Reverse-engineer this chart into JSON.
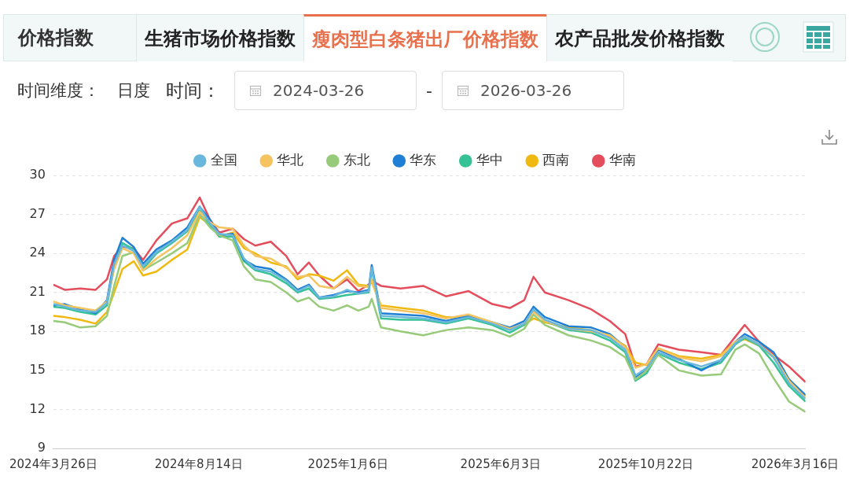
{
  "chart_data": {
    "type": "line",
    "title": "价格指数",
    "annotations": [
      "生猪市场价格指数",
      "瘦肉型白条猪出厂价格指数",
      "农产品批发价格指数",
      "时间维度：",
      "日度",
      "时间：",
      "2024-03-26",
      "-",
      "2026-03-26"
    ],
    "x": [
      "2024-03-26",
      "2024-04-06",
      "2024-04-21",
      "2024-05-06",
      "2024-05-17",
      "2024-05-24",
      "2024-06-01",
      "2024-06-12",
      "2024-06-21",
      "2024-07-04",
      "2024-07-19",
      "2024-08-03",
      "2024-08-15",
      "2024-08-25",
      "2024-09-03",
      "2024-09-16",
      "2024-09-27",
      "2024-10-08",
      "2024-10-23",
      "2024-11-07",
      "2024-11-18",
      "2024-11-29",
      "2024-12-09",
      "2024-12-23",
      "2025-01-05",
      "2025-01-16",
      "2025-01-26",
      "2025-01-29",
      "2025-02-07",
      "2025-02-26",
      "2025-03-20",
      "2025-04-11",
      "2025-05-03",
      "2025-05-26",
      "2025-06-12",
      "2025-06-26",
      "2025-07-05",
      "2025-07-16",
      "2025-08-08",
      "2025-08-30",
      "2025-09-17",
      "2025-10-02",
      "2025-10-12",
      "2025-10-23",
      "2025-11-03",
      "2025-11-23",
      "2025-12-15",
      "2026-01-03",
      "2026-01-17",
      "2026-01-26",
      "2026-02-09",
      "2026-02-23",
      "2026-03-10",
      "2026-03-26"
    ],
    "series": [
      {
        "name": "全国",
        "color": "#6ab7dc",
        "values": [
          20.1,
          19.9,
          19.6,
          19.5,
          20.2,
          23.2,
          24.6,
          24.2,
          23.0,
          24.1,
          24.9,
          25.8,
          27.6,
          26.3,
          25.5,
          25.4,
          23.6,
          22.8,
          22.6,
          21.9,
          21.1,
          21.5,
          20.6,
          20.7,
          21.2,
          20.9,
          21.1,
          22.9,
          19.2,
          19.1,
          19.0,
          18.7,
          19.1,
          18.6,
          18.1,
          18.6,
          19.7,
          18.9,
          18.2,
          18.1,
          17.5,
          16.6,
          14.6,
          15.2,
          16.4,
          15.8,
          15.3,
          15.8,
          17.1,
          17.6,
          17.0,
          16.0,
          14.0,
          12.8
        ]
      },
      {
        "name": "华北",
        "color": "#f5c460",
        "values": [
          20.3,
          20.0,
          19.8,
          19.6,
          20.3,
          22.8,
          24.4,
          24.0,
          22.7,
          23.6,
          24.4,
          25.4,
          27.2,
          26.4,
          26.0,
          25.9,
          24.6,
          23.8,
          23.6,
          22.9,
          22.2,
          22.3,
          21.5,
          21.3,
          22.2,
          21.5,
          21.4,
          22.0,
          19.8,
          19.6,
          19.4,
          19.0,
          19.3,
          18.7,
          18.2,
          18.6,
          19.5,
          18.8,
          18.2,
          18.0,
          17.7,
          16.8,
          15.2,
          15.5,
          16.7,
          16.0,
          15.7,
          16.1,
          17.2,
          17.6,
          17.0,
          16.1,
          14.2,
          12.9
        ]
      },
      {
        "name": "东北",
        "color": "#97cb7a",
        "values": [
          18.8,
          18.7,
          18.3,
          18.4,
          19.2,
          21.5,
          23.8,
          24.1,
          22.7,
          23.3,
          24.0,
          24.8,
          27.0,
          26.0,
          25.4,
          25.0,
          23.0,
          22.0,
          21.8,
          21.0,
          20.3,
          20.6,
          19.9,
          19.6,
          20.0,
          19.6,
          19.9,
          20.5,
          18.3,
          18.0,
          17.7,
          18.1,
          18.3,
          18.1,
          17.6,
          18.2,
          19.3,
          18.5,
          17.7,
          17.3,
          16.8,
          16.0,
          14.3,
          15.0,
          16.2,
          15.0,
          14.6,
          14.7,
          16.6,
          17.0,
          16.3,
          14.4,
          12.6,
          11.8
        ]
      },
      {
        "name": "华东",
        "color": "#1f7fd4",
        "values": [
          20.0,
          20.1,
          19.7,
          19.4,
          20.4,
          23.5,
          25.2,
          24.5,
          23.2,
          24.3,
          25.0,
          26.0,
          27.6,
          26.6,
          25.4,
          25.5,
          23.5,
          23.0,
          22.8,
          22.0,
          21.2,
          21.6,
          20.6,
          20.8,
          21.1,
          21.0,
          21.2,
          23.1,
          19.4,
          19.3,
          19.2,
          18.8,
          19.2,
          18.7,
          18.3,
          18.8,
          19.9,
          19.1,
          18.4,
          18.3,
          17.8,
          16.8,
          14.5,
          15.0,
          16.6,
          15.9,
          15.0,
          15.8,
          17.2,
          17.8,
          17.2,
          16.4,
          14.3,
          13.1
        ]
      },
      {
        "name": "华中",
        "color": "#36c295",
        "values": [
          19.9,
          19.8,
          19.5,
          19.3,
          20.0,
          23.0,
          24.8,
          24.3,
          22.8,
          24.0,
          24.8,
          25.7,
          27.3,
          26.2,
          25.3,
          25.3,
          23.4,
          22.7,
          22.4,
          21.7,
          21.0,
          21.3,
          20.5,
          20.6,
          20.8,
          20.9,
          21.0,
          22.8,
          19.0,
          18.9,
          18.9,
          18.6,
          19.0,
          18.5,
          17.9,
          18.5,
          19.6,
          18.8,
          18.1,
          17.9,
          17.3,
          16.4,
          14.2,
          14.8,
          16.3,
          15.6,
          15.1,
          15.6,
          17.0,
          17.5,
          16.9,
          15.6,
          13.8,
          12.6
        ]
      },
      {
        "name": "西南",
        "color": "#f0b911",
        "values": [
          19.2,
          19.1,
          18.9,
          18.6,
          19.5,
          21.0,
          22.8,
          23.4,
          22.3,
          22.6,
          23.5,
          24.3,
          26.8,
          26.2,
          25.3,
          25.6,
          24.4,
          24.0,
          23.3,
          23.0,
          22.0,
          22.4,
          22.3,
          21.9,
          22.7,
          21.6,
          21.5,
          21.8,
          20.0,
          19.8,
          19.6,
          19.1,
          19.0,
          18.6,
          18.2,
          18.5,
          19.0,
          18.7,
          18.3,
          18.1,
          17.6,
          16.9,
          15.6,
          15.4,
          16.7,
          16.1,
          15.9,
          16.2,
          17.2,
          17.4,
          16.9,
          16.0,
          14.3,
          13.0
        ]
      },
      {
        "name": "华南",
        "color": "#e44d5b",
        "values": [
          21.6,
          21.2,
          21.3,
          21.2,
          22.0,
          23.8,
          24.5,
          24.4,
          23.5,
          25.0,
          26.3,
          26.7,
          28.3,
          26.6,
          25.6,
          25.9,
          25.1,
          24.6,
          24.9,
          23.8,
          22.4,
          23.3,
          22.3,
          21.3,
          22.0,
          21.1,
          21.6,
          21.9,
          21.5,
          21.3,
          21.5,
          20.7,
          21.1,
          20.1,
          19.8,
          20.4,
          22.2,
          21.0,
          20.4,
          19.7,
          18.8,
          17.8,
          15.3,
          15.5,
          17.0,
          16.6,
          16.4,
          16.2,
          17.6,
          18.5,
          17.2,
          16.2,
          15.3,
          14.1
        ]
      }
    ],
    "xlim": [
      "2024-03-26",
      "2026-03-26"
    ],
    "xticks": [
      {
        "value": "2024-03-26",
        "label": "2024年3月26日"
      },
      {
        "value": "2024-08-14",
        "label": "2024年8月14日"
      },
      {
        "value": "2025-01-06",
        "label": "2025年1月6日"
      },
      {
        "value": "2025-06-03",
        "label": "2025年6月3日"
      },
      {
        "value": "2025-10-22",
        "label": "2025年10月22日"
      },
      {
        "value": "2026-03-16",
        "label": "2026年3月16日"
      }
    ],
    "ylim": [
      9,
      30
    ],
    "yticks": [
      9,
      12,
      15,
      18,
      21,
      24,
      27,
      30
    ],
    "grid": "y",
    "legend": "top"
  }
}
